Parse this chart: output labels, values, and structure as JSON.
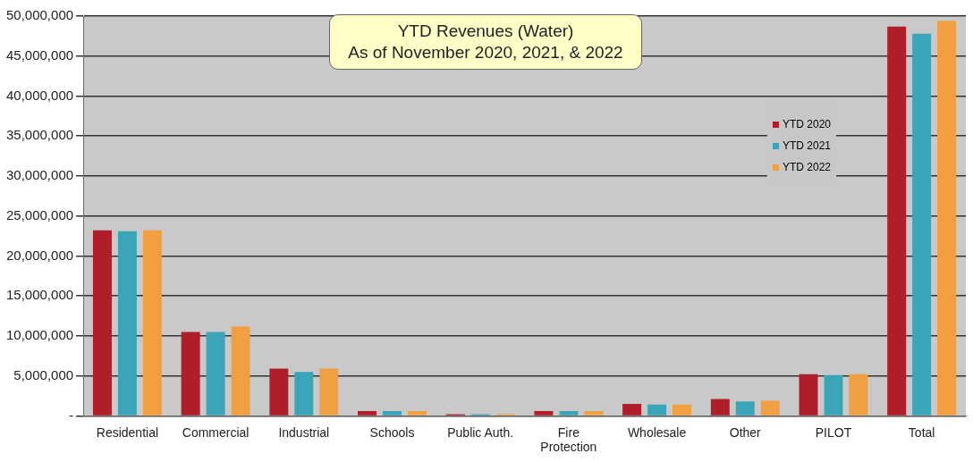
{
  "chart_data": {
    "type": "bar",
    "title": "YTD Revenues (Water)",
    "subtitle": "As of November 2020, 2021, & 2022",
    "categories": [
      "Residential",
      "Commercial",
      "Industrial",
      "Schools",
      "Public Auth.",
      "Fire Protection",
      "Wholesale",
      "Other",
      "PILOT",
      "Total"
    ],
    "series": [
      {
        "name": "YTD 2020",
        "color": "#b01e2a",
        "values": [
          23200000,
          10500000,
          5900000,
          600000,
          200000,
          600000,
          1500000,
          2100000,
          5200000,
          48700000
        ]
      },
      {
        "name": "YTD 2021",
        "color": "#3aa5b8",
        "values": [
          23100000,
          10500000,
          5500000,
          600000,
          200000,
          600000,
          1400000,
          1800000,
          5100000,
          47800000
        ]
      },
      {
        "name": "YTD 2022",
        "color": "#f0a040",
        "values": [
          23200000,
          11200000,
          5900000,
          600000,
          200000,
          600000,
          1400000,
          1900000,
          5200000,
          49400000
        ]
      }
    ],
    "ylim": [
      0,
      50000000
    ],
    "yticks": [
      {
        "value": 0,
        "label": "-"
      },
      {
        "value": 5000000,
        "label": "5,000,000"
      },
      {
        "value": 10000000,
        "label": "10,000,000"
      },
      {
        "value": 15000000,
        "label": "15,000,000"
      },
      {
        "value": 20000000,
        "label": "20,000,000"
      },
      {
        "value": 25000000,
        "label": "25,000,000"
      },
      {
        "value": 30000000,
        "label": "30,000,000"
      },
      {
        "value": 35000000,
        "label": "35,000,000"
      },
      {
        "value": 40000000,
        "label": "40,000,000"
      },
      {
        "value": 45000000,
        "label": "45,000,000"
      },
      {
        "value": 50000000,
        "label": "50,000,000"
      }
    ],
    "grid": "y",
    "legend": "top right"
  }
}
